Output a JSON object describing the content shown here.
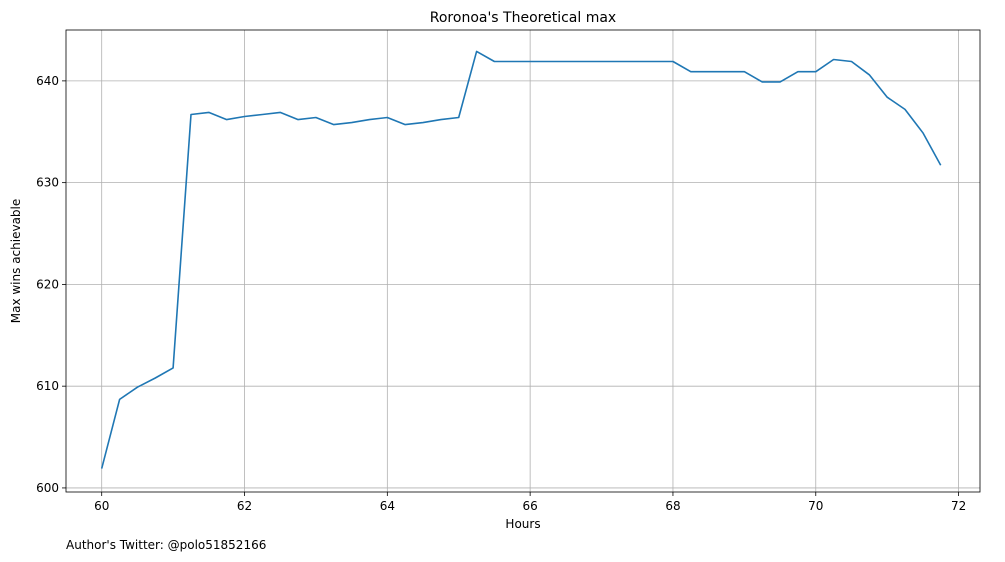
{
  "chart_data": {
    "type": "line",
    "title": "Roronoa's Theoretical max",
    "xlabel": "Hours",
    "ylabel": "Max wins achievable",
    "xlim": [
      59.5,
      72.3
    ],
    "ylim": [
      599.6,
      645
    ],
    "xticks": [
      60,
      62,
      64,
      66,
      68,
      70,
      72
    ],
    "yticks": [
      600,
      610,
      620,
      630,
      640
    ],
    "grid": true,
    "line_color": "#1f77b4",
    "series": [
      {
        "x": [
          60,
          60.25,
          60.5,
          60.75,
          61,
          61.25,
          61.5,
          61.75,
          62,
          62.25,
          62.5,
          62.75,
          63,
          63.25,
          63.5,
          63.75,
          64,
          64.25,
          64.5,
          64.75,
          65,
          65.25,
          65.5,
          65.75,
          66,
          66.25,
          66.5,
          66.75,
          67,
          67.25,
          67.5,
          67.75,
          68,
          68.25,
          68.5,
          68.75,
          69,
          69.25,
          69.5,
          69.75,
          70,
          70.25,
          70.5,
          70.75,
          71,
          71.25,
          71.5,
          71.75
        ],
        "y": [
          601.9,
          608.7,
          609.9,
          610.8,
          611.8,
          636.7,
          636.9,
          636.2,
          636.5,
          636.7,
          636.9,
          636.2,
          636.4,
          635.7,
          635.9,
          636.2,
          636.4,
          635.7,
          635.9,
          636.2,
          636.4,
          642.9,
          641.9,
          641.9,
          641.9,
          641.9,
          641.9,
          641.9,
          641.9,
          641.9,
          641.9,
          641.9,
          641.9,
          640.9,
          640.9,
          640.9,
          640.9,
          639.9,
          639.9,
          640.9,
          640.9,
          642.1,
          641.9,
          640.6,
          638.4,
          637.2,
          634.9,
          631.7
        ]
      }
    ]
  },
  "footnote": "Author's Twitter: @polo51852166"
}
